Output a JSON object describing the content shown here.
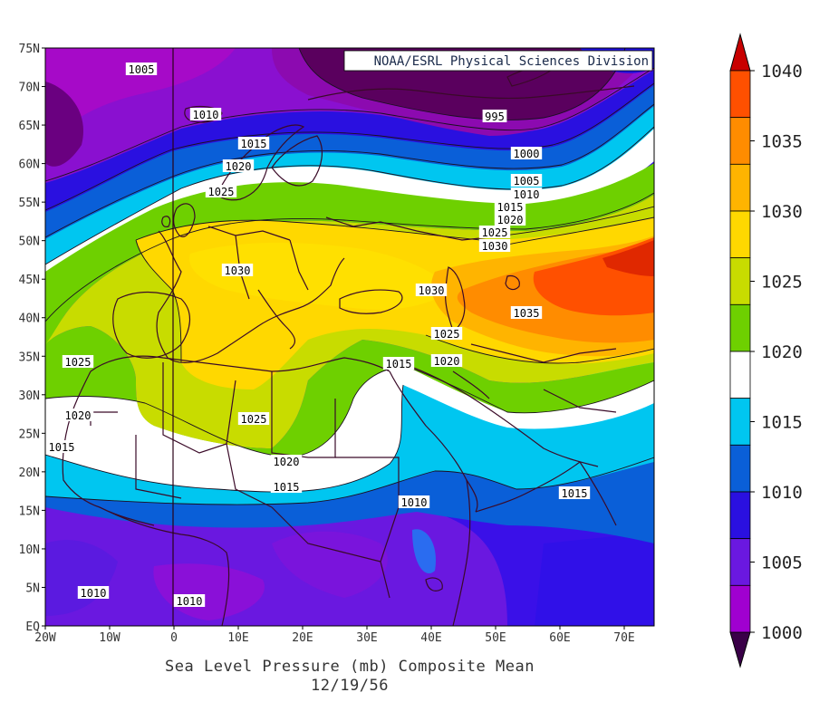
{
  "credit": "NOAA/ESRL Physical Sciences Division",
  "title": "Sea Level Pressure (mb) Composite Mean",
  "date": "12/19/56",
  "y_ticks": [
    "75N",
    "70N",
    "65N",
    "60N",
    "55N",
    "50N",
    "45N",
    "40N",
    "35N",
    "30N",
    "25N",
    "20N",
    "15N",
    "10N",
    "5N",
    "EQ"
  ],
  "x_ticks": [
    "20W",
    "10W",
    "0",
    "10E",
    "20E",
    "30E",
    "40E",
    "50E",
    "60E",
    "70E"
  ],
  "colorbar": {
    "labels": [
      "1040",
      "1035",
      "1030",
      "1025",
      "1020",
      "1015",
      "1010",
      "1005",
      "1000"
    ],
    "colors": [
      "#ff8a00",
      "#ffc400",
      "#ffe400",
      "#c8dc00",
      "#5cc800",
      "#ffffff",
      "#00c8f0",
      "#0070d0",
      "#2000e0",
      "#6a00e0",
      "#a000d0",
      "#7a0090",
      "#500060"
    ]
  },
  "contour_labels": [
    {
      "text": "1005",
      "key": "north-atlantic"
    },
    {
      "text": "1010",
      "key": "iceland"
    },
    {
      "text": "1015",
      "key": "norway"
    },
    {
      "text": "1020",
      "key": "sweden"
    },
    {
      "text": "1025",
      "key": "north-sea"
    },
    {
      "text": "995",
      "key": "barents"
    },
    {
      "text": "1000",
      "key": "ural-north"
    },
    {
      "text": "1005",
      "key": "ural-1"
    },
    {
      "text": "1010",
      "key": "ural-2"
    },
    {
      "text": "1015",
      "key": "ural-3"
    },
    {
      "text": "1020",
      "key": "ural-4"
    },
    {
      "text": "1025",
      "key": "ural-5"
    },
    {
      "text": "1030",
      "key": "ural-6"
    },
    {
      "text": "1030",
      "key": "alps"
    },
    {
      "text": "1030",
      "key": "black-sea"
    },
    {
      "text": "1035",
      "key": "kazakh"
    },
    {
      "text": "1025",
      "key": "caspian"
    },
    {
      "text": "1015",
      "key": "levant"
    },
    {
      "text": "1020",
      "key": "mesopotamia"
    },
    {
      "text": "1025",
      "key": "atlantic-iberia"
    },
    {
      "text": "1020",
      "key": "atlantic-canary"
    },
    {
      "text": "1015",
      "key": "atlantic-west"
    },
    {
      "text": "1025",
      "key": "sahara"
    },
    {
      "text": "1020",
      "key": "sahel"
    },
    {
      "text": "1015",
      "key": "sahel-south"
    },
    {
      "text": "1010",
      "key": "ethiopia"
    },
    {
      "text": "1015",
      "key": "arabian-sea"
    },
    {
      "text": "1010",
      "key": "gulf-guinea"
    },
    {
      "text": "1010",
      "key": "congo"
    }
  ]
}
